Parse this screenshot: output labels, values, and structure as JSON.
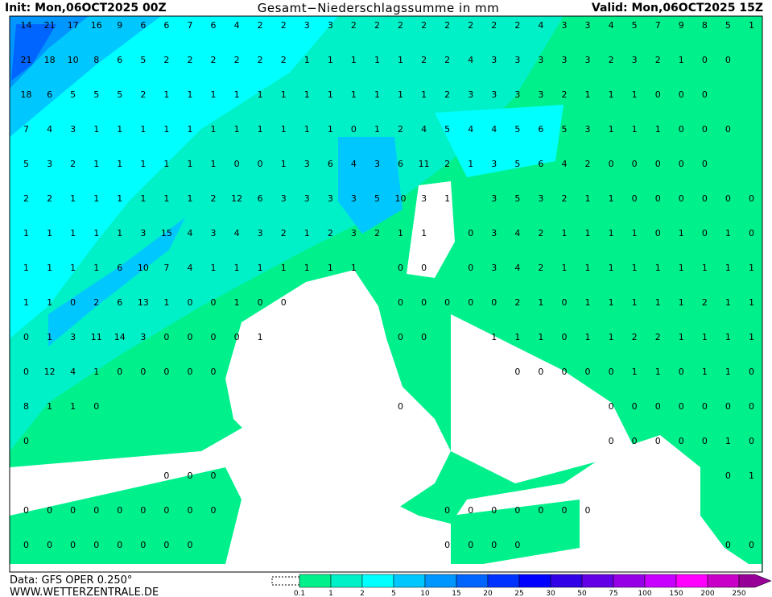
{
  "header": {
    "init": "Init: Mon,06OCT2025 00Z",
    "title": "Gesamt−Niederschlagssumme in mm",
    "valid": "Valid: Mon,06OCT2025 15Z"
  },
  "footer": {
    "data": "Data: GFS OPER 0.250°",
    "site": "WWW.WETTERZENTRALE.DE"
  },
  "legend": {
    "levels": [
      "0.1",
      "1",
      "2",
      "5",
      "10",
      "15",
      "20",
      "25",
      "30",
      "50",
      "75",
      "100",
      "150",
      "200",
      "250"
    ],
    "colors": [
      "#00f08c",
      "#00f0c8",
      "#00ffff",
      "#00c8ff",
      "#0096ff",
      "#0064ff",
      "#0032ff",
      "#0000ff",
      "#3200e6",
      "#6400e6",
      "#9600e6",
      "#c800ff",
      "#ff00ff",
      "#c800c8",
      "#960096"
    ]
  },
  "map": {
    "grid": [
      [
        14,
        21,
        17,
        16,
        9,
        6,
        6,
        7,
        6,
        4,
        2,
        2,
        3,
        3,
        2,
        2,
        2,
        2,
        2,
        2,
        2,
        2,
        4,
        3,
        3,
        4,
        5,
        7,
        9,
        8,
        5,
        1
      ],
      [
        21,
        18,
        10,
        8,
        6,
        5,
        2,
        2,
        2,
        2,
        2,
        2,
        1,
        1,
        1,
        1,
        1,
        2,
        2,
        4,
        3,
        3,
        3,
        3,
        3,
        2,
        3,
        2,
        1,
        0,
        0,
        null
      ],
      [
        18,
        6,
        5,
        5,
        5,
        2,
        1,
        1,
        1,
        1,
        1,
        1,
        1,
        1,
        1,
        1,
        1,
        1,
        2,
        3,
        3,
        3,
        3,
        2,
        1,
        1,
        1,
        0,
        0,
        0,
        null,
        null
      ],
      [
        7,
        4,
        3,
        1,
        1,
        1,
        1,
        1,
        1,
        1,
        1,
        1,
        1,
        1,
        0,
        1,
        2,
        4,
        5,
        4,
        4,
        5,
        6,
        5,
        3,
        1,
        1,
        1,
        0,
        0,
        0,
        null
      ],
      [
        5,
        3,
        2,
        1,
        1,
        1,
        1,
        1,
        1,
        0,
        0,
        1,
        3,
        6,
        4,
        3,
        6,
        11,
        2,
        1,
        3,
        5,
        6,
        4,
        2,
        0,
        0,
        0,
        0,
        0,
        null,
        null
      ],
      [
        2,
        2,
        1,
        1,
        1,
        1,
        1,
        1,
        2,
        12,
        6,
        3,
        3,
        3,
        3,
        5,
        10,
        3,
        1,
        null,
        3,
        5,
        3,
        2,
        1,
        1,
        0,
        0,
        0,
        0,
        0,
        0
      ],
      [
        1,
        1,
        1,
        1,
        1,
        3,
        15,
        4,
        3,
        4,
        3,
        2,
        1,
        2,
        3,
        2,
        1,
        1,
        null,
        0,
        3,
        4,
        2,
        1,
        1,
        1,
        1,
        0,
        1,
        0,
        1,
        0
      ],
      [
        1,
        1,
        1,
        1,
        6,
        10,
        7,
        4,
        1,
        1,
        1,
        1,
        1,
        1,
        1,
        null,
        0,
        0,
        null,
        0,
        3,
        4,
        2,
        1,
        1,
        1,
        1,
        1,
        1,
        1,
        1,
        1
      ],
      [
        1,
        1,
        0,
        2,
        6,
        13,
        1,
        0,
        0,
        1,
        0,
        0,
        null,
        null,
        null,
        null,
        0,
        0,
        0,
        0,
        0,
        2,
        1,
        0,
        1,
        1,
        1,
        1,
        1,
        2,
        1,
        1
      ],
      [
        0,
        1,
        3,
        11,
        14,
        3,
        0,
        0,
        0,
        0,
        1,
        null,
        null,
        null,
        null,
        null,
        0,
        0,
        null,
        null,
        1,
        1,
        1,
        0,
        1,
        1,
        2,
        2,
        1,
        1,
        1,
        1
      ],
      [
        0,
        12,
        4,
        1,
        0,
        0,
        0,
        0,
        0,
        null,
        null,
        null,
        null,
        null,
        null,
        null,
        null,
        null,
        null,
        null,
        null,
        0,
        0,
        0,
        0,
        0,
        1,
        1,
        0,
        1,
        1,
        0
      ],
      [
        8,
        1,
        1,
        0,
        null,
        null,
        null,
        null,
        null,
        null,
        null,
        null,
        null,
        null,
        null,
        null,
        0,
        null,
        null,
        null,
        null,
        null,
        null,
        null,
        null,
        0,
        0,
        0,
        0,
        0,
        0,
        0
      ],
      [
        0,
        null,
        null,
        null,
        null,
        null,
        null,
        null,
        null,
        null,
        null,
        null,
        null,
        null,
        null,
        null,
        null,
        null,
        null,
        null,
        null,
        null,
        null,
        null,
        null,
        0,
        0,
        0,
        0,
        0,
        1,
        0
      ],
      [
        null,
        null,
        null,
        null,
        null,
        null,
        0,
        0,
        0,
        null,
        null,
        null,
        null,
        null,
        null,
        null,
        null,
        null,
        null,
        null,
        null,
        null,
        null,
        null,
        null,
        null,
        null,
        null,
        null,
        null,
        0,
        1
      ],
      [
        0,
        0,
        0,
        0,
        0,
        0,
        0,
        0,
        0,
        null,
        null,
        null,
        null,
        null,
        null,
        null,
        null,
        null,
        0,
        0,
        0,
        0,
        0,
        0,
        0,
        null,
        null,
        null,
        null,
        null,
        null,
        null
      ],
      [
        0,
        0,
        0,
        0,
        0,
        0,
        0,
        0,
        null,
        null,
        null,
        null,
        null,
        null,
        null,
        null,
        null,
        null,
        0,
        0,
        0,
        0,
        null,
        null,
        null,
        null,
        null,
        null,
        null,
        null,
        0,
        0
      ]
    ]
  }
}
